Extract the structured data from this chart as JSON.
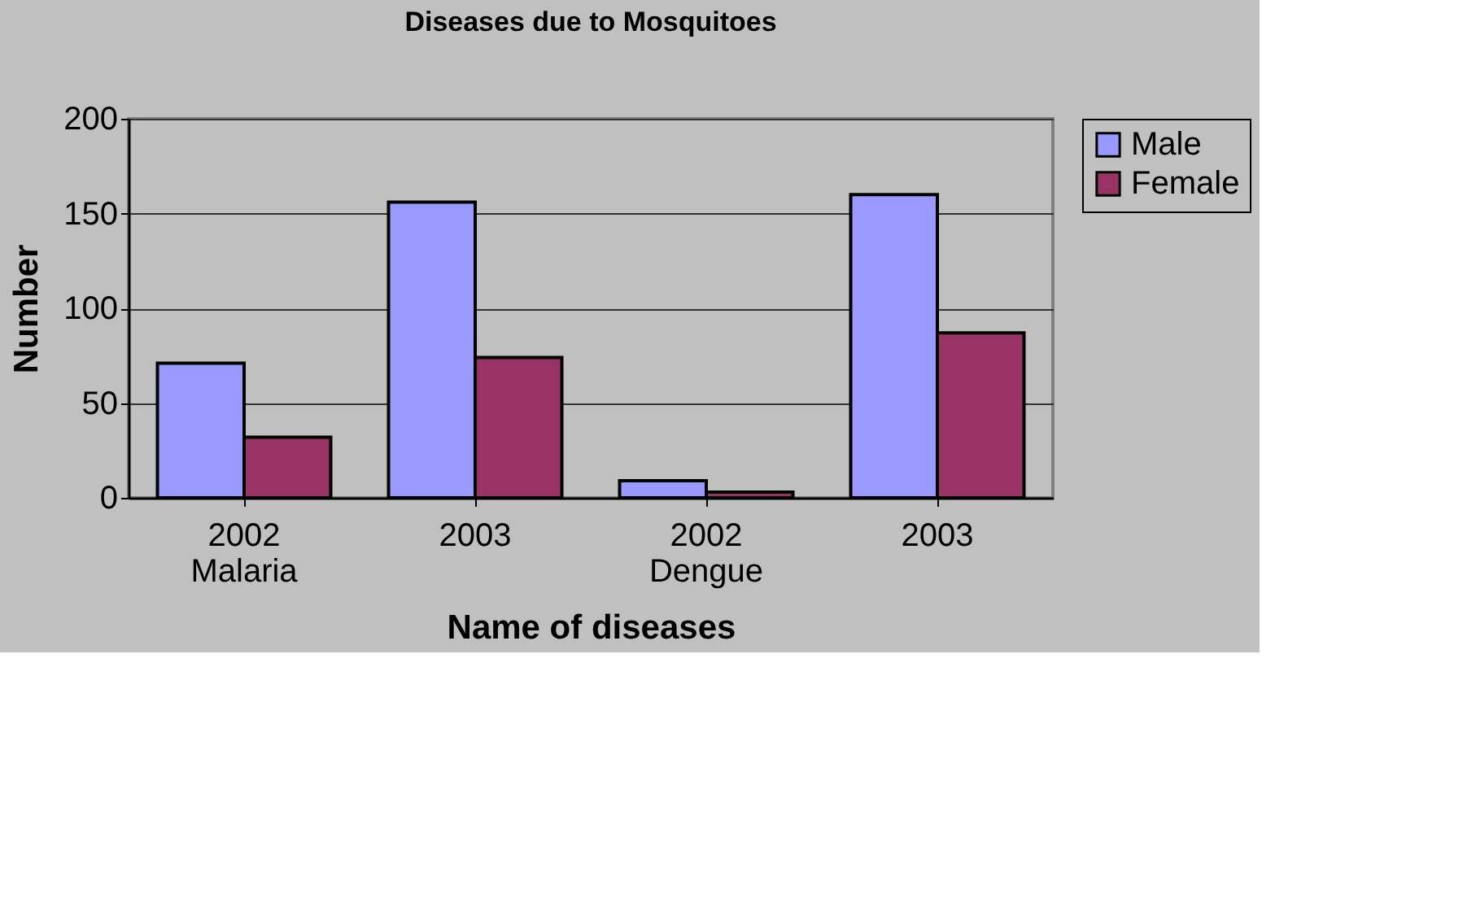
{
  "chart_data": {
    "type": "bar",
    "title": "Diseases due to Mosquitoes",
    "xlabel": "Name of diseases",
    "ylabel": "Number",
    "categories": [
      "2002\nMalaria",
      "2003",
      "2002\nDengue",
      "2003"
    ],
    "series": [
      {
        "name": "Male",
        "color": "#9999ff",
        "values": [
          71,
          156,
          9,
          160
        ]
      },
      {
        "name": "Female",
        "color": "#993366",
        "values": [
          32,
          74,
          3,
          87
        ]
      }
    ],
    "ylim": [
      0,
      200
    ],
    "yticks": [
      0,
      50,
      100,
      150,
      200
    ],
    "grid": "y",
    "legend": "right"
  }
}
